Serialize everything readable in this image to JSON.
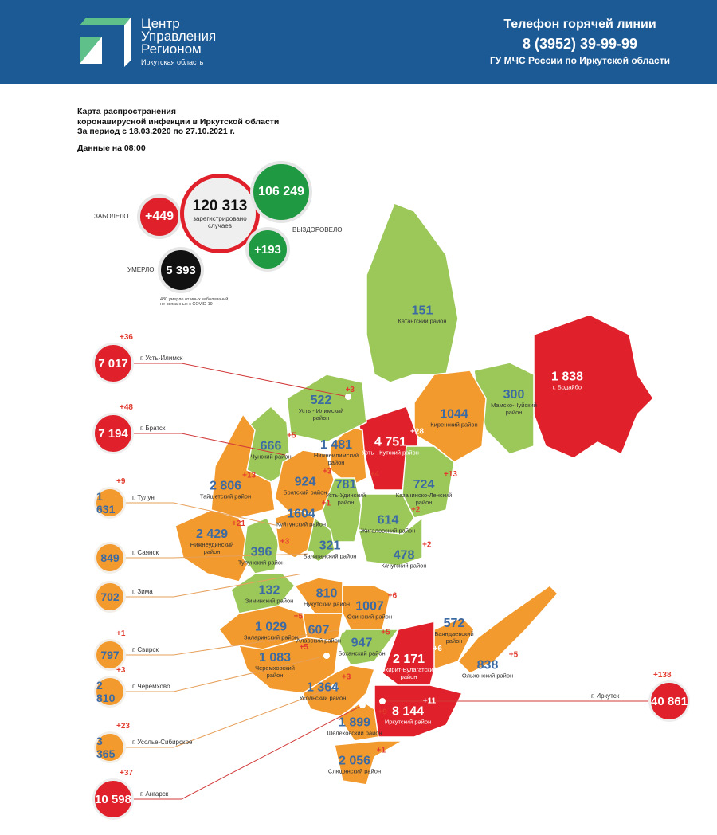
{
  "header": {
    "logo_lines": [
      "Центр",
      "Управления",
      "Регионом"
    ],
    "logo_sub": "Иркутская область",
    "hotline_title": "Телефон горячей линии",
    "hotline_phone": "8 (3952) 39-99-99",
    "hotline_org": "ГУ МЧС России по Иркутской области"
  },
  "title_lines": [
    "Карта распространения",
    "коронавирусной инфекции в Иркутской области",
    "За период с 18.03.2020 по 27.10.2021 г."
  ],
  "as_of": "Данные на 08:00",
  "totals": {
    "registered": "120 313",
    "registered_label_1": "зарегистрировано",
    "registered_label_2": "случаев",
    "sick_label": "ЗАБОЛЕЛО",
    "sick_delta": "+449",
    "recovered": "106 249",
    "recovered_delta": "+193",
    "recovered_label": "ВЫЗДОРОВЕЛО",
    "died_label": "УМЕРЛО",
    "died": "5 393",
    "note": "480 умерло от иных заболеваний, не связанных с COVID-19"
  },
  "colors": {
    "header": "#1c5a96",
    "red": "#e0202a",
    "orange": "#f29a2e",
    "green": "#9cc85a",
    "count_blue": "#3c6aa3",
    "delta_red": "#e23a2e",
    "recovered_green": "#1f9a42"
  },
  "districts": [
    {
      "name": "Катангский район",
      "count": "151",
      "delta": "",
      "level": "green"
    },
    {
      "name": "г. Бодайбо",
      "count": "1 838",
      "delta": "",
      "level": "red"
    },
    {
      "name": "Мамско-Чуйский район",
      "count": "300",
      "delta": "",
      "level": "green"
    },
    {
      "name": "Киренский район",
      "count": "1044",
      "delta": "",
      "level": "orange"
    },
    {
      "name": "Усть - Кутский район",
      "count": "4 751",
      "delta": "+28",
      "level": "red"
    },
    {
      "name": "Нижнеилимский район",
      "count": "1 481",
      "delta": "",
      "level": "orange"
    },
    {
      "name": "Усть - Илимский район",
      "count": "522",
      "delta": "+3",
      "level": "green"
    },
    {
      "name": "Чунский район",
      "count": "666",
      "delta": "+5",
      "level": "green"
    },
    {
      "name": "Братский район",
      "count": "924",
      "delta": "+3",
      "level": "orange"
    },
    {
      "name": "Тайшетский район",
      "count": "2 806",
      "delta": "+13",
      "level": "orange"
    },
    {
      "name": "Усть-Удинский район",
      "count": "781",
      "delta": "+4",
      "level": "green"
    },
    {
      "name": "Казачинско-Ленский район",
      "count": "724",
      "delta": "+13",
      "level": "green"
    },
    {
      "name": "Жигаловский район",
      "count": "614",
      "delta": "+2",
      "level": "green"
    },
    {
      "name": "Нижнеудинский район",
      "count": "2 429",
      "delta": "+21",
      "level": "orange"
    },
    {
      "name": "Тулунский район",
      "count": "396",
      "delta": "+3",
      "level": "green"
    },
    {
      "name": "Куйтунский район",
      "count": "1604",
      "delta": "+1",
      "level": "orange"
    },
    {
      "name": "Балаганский район",
      "count": "321",
      "delta": "",
      "level": "green"
    },
    {
      "name": "Качугский район",
      "count": "478",
      "delta": "+2",
      "level": "green"
    },
    {
      "name": "Зиминский район",
      "count": "132",
      "delta": "",
      "level": "green"
    },
    {
      "name": "Нукутский район",
      "count": "810",
      "delta": "",
      "level": "orange"
    },
    {
      "name": "Осинский район",
      "count": "1007",
      "delta": "+6",
      "level": "orange"
    },
    {
      "name": "Заларинский район",
      "count": "1 029",
      "delta": "+5",
      "level": "orange"
    },
    {
      "name": "Аларский район",
      "count": "607",
      "delta": "",
      "level": "orange"
    },
    {
      "name": "Боханский район",
      "count": "947",
      "delta": "+5",
      "level": "green"
    },
    {
      "name": "Баяндаевский район",
      "count": "572",
      "delta": "",
      "level": "orange"
    },
    {
      "name": "Эхирит-Булагатский район",
      "count": "2 171",
      "delta": "+6",
      "level": "red"
    },
    {
      "name": "Ольхонский район",
      "count": "838",
      "delta": "+5",
      "level": "orange"
    },
    {
      "name": "Черемховский район",
      "count": "1 083",
      "delta": "+5",
      "level": "orange"
    },
    {
      "name": "Усольский район",
      "count": "1 364",
      "delta": "+3",
      "level": "orange"
    },
    {
      "name": "Шелеховский район",
      "count": "1 899",
      "delta": "+9",
      "level": "orange"
    },
    {
      "name": "Иркутский район",
      "count": "8 144",
      "delta": "+11",
      "level": "red"
    },
    {
      "name": "Слюдянский район",
      "count": "2 056",
      "delta": "+1",
      "level": "orange"
    }
  ],
  "cities": [
    {
      "name": "г. Усть-Илимск",
      "count": "7 017",
      "delta": "+36",
      "level": "red"
    },
    {
      "name": "г. Братск",
      "count": "7 194",
      "delta": "+48",
      "level": "red"
    },
    {
      "name": "г. Тулун",
      "count": "1 631",
      "delta": "+9",
      "level": "orange"
    },
    {
      "name": "г. Саянск",
      "count": "849",
      "delta": "",
      "level": "orange"
    },
    {
      "name": "г. Зима",
      "count": "702",
      "delta": "",
      "level": "orange"
    },
    {
      "name": "г. Свирск",
      "count": "797",
      "delta": "+1",
      "level": "orange"
    },
    {
      "name": "г. Черемхово",
      "count": "2 810",
      "delta": "+3",
      "level": "orange"
    },
    {
      "name": "г. Усолье-Сибирское",
      "count": "3 365",
      "delta": "+23",
      "level": "orange"
    },
    {
      "name": "г. Ангарск",
      "count": "10 598",
      "delta": "+37",
      "level": "red"
    },
    {
      "name": "г. Иркутск",
      "count": "40 861",
      "delta": "+138",
      "level": "red"
    }
  ]
}
